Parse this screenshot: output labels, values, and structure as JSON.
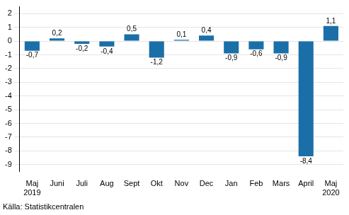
{
  "chart_data": {
    "type": "bar",
    "categories": [
      "Maj\n2019",
      "Juni",
      "Juli",
      "Aug",
      "Sept",
      "Okt",
      "Nov",
      "Dec",
      "Jan",
      "Feb",
      "Mars",
      "April",
      "Maj\n2020"
    ],
    "values": [
      -0.7,
      0.2,
      -0.2,
      -0.4,
      0.5,
      -1.2,
      0.1,
      0.4,
      -0.9,
      -0.6,
      -0.9,
      -8.4,
      1.1
    ],
    "value_labels": [
      "-0,7",
      "0,2",
      "-0,2",
      "-0,4",
      "0,5",
      "-1,2",
      "0,1",
      "0,4",
      "-0,9",
      "-0,6",
      "-0,9",
      "-8,4",
      "1,1"
    ],
    "color": "#1a6fa8",
    "ylim": [
      -9.5,
      2.5
    ],
    "yticks": [
      -9,
      -8,
      -7,
      -6,
      -5,
      -4,
      -3,
      -2,
      -1,
      0,
      1,
      2
    ],
    "grid": true,
    "data_labels": true,
    "annotations": [
      "Källa: Statistikcentralen"
    ]
  }
}
